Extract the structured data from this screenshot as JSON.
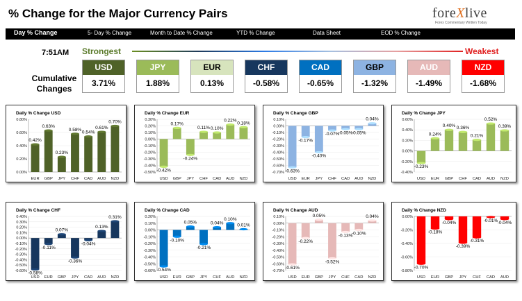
{
  "header": {
    "title": "% Change for the Major Currency Pairs",
    "logo_text_a": "fore",
    "logo_text_x": "X",
    "logo_text_b": "live",
    "logo_tagline": "Forex Commentary Written Today"
  },
  "nav": {
    "items": [
      {
        "label": "Day % Change",
        "active": true
      },
      {
        "label": "5- Day % Change",
        "active": false
      },
      {
        "label": "Month to Date % Change",
        "active": false
      },
      {
        "label": "YTD % Change",
        "active": false
      },
      {
        "label": "Data Sheet",
        "active": false
      },
      {
        "label": "EOD % Change",
        "active": false
      }
    ]
  },
  "summary": {
    "time": "7:51AM",
    "strongest": "Strongest",
    "weakest": "Weakest",
    "cumulative_label_1": "Cumulative",
    "cumulative_label_2": "Changes",
    "currencies": [
      {
        "name": "USD",
        "value": "3.71%",
        "color": "#4f6228",
        "text_color": "#ffffff"
      },
      {
        "name": "JPY",
        "value": "1.88%",
        "color": "#9bbb59",
        "text_color": "#ffffff"
      },
      {
        "name": "EUR",
        "value": "0.13%",
        "color": "#d7e4bd",
        "text_color": "#000000"
      },
      {
        "name": "CHF",
        "value": "-0.58%",
        "color": "#17375e",
        "text_color": "#ffffff"
      },
      {
        "name": "CAD",
        "value": "-0.65%",
        "color": "#0070c0",
        "text_color": "#ffffff"
      },
      {
        "name": "GBP",
        "value": "-1.32%",
        "color": "#8db3e2",
        "text_color": "#000000"
      },
      {
        "name": "AUD",
        "value": "-1.49%",
        "color": "#e6b9b8",
        "text_color": "#ffffff"
      },
      {
        "name": "NZD",
        "value": "-1.68%",
        "color": "#ff0000",
        "text_color": "#ffffff"
      }
    ]
  },
  "chart_data": [
    {
      "type": "bar",
      "title": "Daily % Change USD",
      "color": "#4f6228",
      "categories": [
        "EUR",
        "GBP",
        "JPY",
        "CHF",
        "CAD",
        "AUD",
        "NZD"
      ],
      "values": [
        0.42,
        0.63,
        0.23,
        0.58,
        0.54,
        0.61,
        0.7
      ],
      "labels": [
        "0.42%",
        "0.63%",
        "0.23%",
        "0.58%",
        "0.54%",
        "0.61%",
        "0.70%"
      ],
      "ylim": [
        0.0,
        0.8
      ],
      "ticks": [
        0.0,
        0.2,
        0.4,
        0.6,
        0.8
      ],
      "tick_labels": [
        "0.00%",
        "0.20%",
        "0.40%",
        "0.60%",
        "0.80%"
      ]
    },
    {
      "type": "bar",
      "title": "Daily % Change EUR",
      "color": "#9bbb59",
      "categories": [
        "USD",
        "GBP",
        "JPY",
        "CHF",
        "CAD",
        "AUD",
        "NZD"
      ],
      "values": [
        -0.42,
        0.17,
        -0.24,
        0.11,
        0.1,
        0.22,
        0.18
      ],
      "labels": [
        "-0.42%",
        "0.17%",
        "-0.24%",
        "0.11%",
        "0.10%",
        "0.22%",
        "0.18%"
      ],
      "ylim": [
        -0.5,
        0.3
      ],
      "ticks": [
        -0.5,
        -0.4,
        -0.3,
        -0.2,
        -0.1,
        0.0,
        0.1,
        0.2,
        0.3
      ],
      "tick_labels": [
        "-0.50%",
        "-0.40%",
        "-0.30%",
        "-0.20%",
        "-0.10%",
        "0.00%",
        "0.10%",
        "0.20%",
        "0.30%"
      ]
    },
    {
      "type": "bar",
      "title": "Daily % Change GBP",
      "color": "#8db3e2",
      "categories": [
        "USD",
        "EUR",
        "JPY",
        "CHF",
        "CAD",
        "AUD",
        "NZD"
      ],
      "values": [
        -0.63,
        -0.17,
        -0.4,
        -0.07,
        -0.05,
        -0.05,
        0.04
      ],
      "labels": [
        "-0.63%",
        "-0.17%",
        "-0.40%",
        "-0.07%",
        "-0.05%",
        "-0.05%",
        "0.04%"
      ],
      "ylim": [
        -0.7,
        0.1
      ],
      "ticks": [
        -0.7,
        -0.6,
        -0.5,
        -0.4,
        -0.3,
        -0.2,
        -0.1,
        0.0,
        0.1
      ],
      "tick_labels": [
        "-0.70%",
        "-0.60%",
        "-0.50%",
        "-0.40%",
        "-0.30%",
        "-0.20%",
        "-0.10%",
        "0.00%",
        "0.10%"
      ]
    },
    {
      "type": "bar",
      "title": "Daily % Change JPY",
      "color": "#9bbb59",
      "categories": [
        "USD",
        "EUR",
        "GBP",
        "CHF",
        "CAD",
        "AUD",
        "NZD"
      ],
      "values": [
        -0.23,
        0.24,
        0.4,
        0.36,
        0.21,
        0.52,
        0.39
      ],
      "labels": [
        "-0.23%",
        "0.24%",
        "0.40%",
        "0.36%",
        "0.21%",
        "0.52%",
        "0.39%"
      ],
      "ylim": [
        -0.4,
        0.6
      ],
      "ticks": [
        -0.4,
        -0.2,
        0.0,
        0.2,
        0.4,
        0.6
      ],
      "tick_labels": [
        "-0.40%",
        "-0.20%",
        "0.00%",
        "0.20%",
        "0.40%",
        "0.60%"
      ]
    },
    {
      "type": "bar",
      "title": "Daily % Change CHF",
      "color": "#17375e",
      "categories": [
        "USD",
        "EUR",
        "GBP",
        "JPY",
        "CAD",
        "AUD",
        "NZD"
      ],
      "values": [
        -0.58,
        -0.11,
        0.07,
        -0.36,
        -0.04,
        0.13,
        0.31
      ],
      "labels": [
        "-0.58%",
        "-0.11%",
        "0.07%",
        "-0.36%",
        "-0.04%",
        "0.13%",
        "0.31%"
      ],
      "ylim": [
        -0.6,
        0.4
      ],
      "ticks": [
        -0.6,
        -0.5,
        -0.4,
        -0.3,
        -0.2,
        -0.1,
        0.0,
        0.1,
        0.2,
        0.3,
        0.4
      ],
      "tick_labels": [
        "-0.60%",
        "-0.50%",
        "-0.40%",
        "-0.30%",
        "-0.20%",
        "-0.10%",
        "0.00%",
        "0.10%",
        "0.20%",
        "0.30%",
        "0.40%"
      ]
    },
    {
      "type": "bar",
      "title": "Daily % Change CAD",
      "color": "#0070c0",
      "categories": [
        "USD",
        "EUR",
        "GBP",
        "JPY",
        "CHF",
        "AUD",
        "NZD"
      ],
      "values": [
        -0.54,
        -0.1,
        0.05,
        -0.21,
        0.04,
        0.1,
        0.01
      ],
      "labels": [
        "-0.54%",
        "-0.10%",
        "0.05%",
        "-0.21%",
        "0.04%",
        "0.10%",
        "0.01%"
      ],
      "ylim": [
        -0.6,
        0.2
      ],
      "ticks": [
        -0.6,
        -0.5,
        -0.4,
        -0.3,
        -0.2,
        -0.1,
        0.0,
        0.1,
        0.2
      ],
      "tick_labels": [
        "-0.60%",
        "-0.50%",
        "-0.40%",
        "-0.30%",
        "-0.20%",
        "-0.10%",
        "0.00%",
        "0.10%",
        "0.20%"
      ]
    },
    {
      "type": "bar",
      "title": "Daily % Change AUD",
      "color": "#e6b9b8",
      "categories": [
        "USD",
        "EUR",
        "GBP",
        "JPY",
        "CHF",
        "CAD",
        "NZD"
      ],
      "values": [
        -0.61,
        -0.22,
        0.05,
        -0.52,
        -0.13,
        -0.1,
        0.04
      ],
      "labels": [
        "-0.61%",
        "-0.22%",
        "0.05%",
        "-0.52%",
        "-0.13%",
        "-0.10%",
        "0.04%"
      ],
      "ylim": [
        -0.7,
        0.1
      ],
      "ticks": [
        -0.7,
        -0.6,
        -0.5,
        -0.4,
        -0.3,
        -0.2,
        -0.1,
        0.0,
        0.1
      ],
      "tick_labels": [
        "-0.70%",
        "-0.60%",
        "-0.50%",
        "-0.40%",
        "-0.30%",
        "-0.20%",
        "-0.10%",
        "0.00%",
        "0.10%"
      ]
    },
    {
      "type": "bar",
      "title": "Daily % Change NZD",
      "color": "#ff0000",
      "categories": [
        "USD",
        "EUR",
        "GBP",
        "JPY",
        "CHF",
        "CAD",
        "AUD"
      ],
      "values": [
        -0.7,
        -0.18,
        -0.04,
        -0.39,
        -0.31,
        -0.01,
        -0.04
      ],
      "labels": [
        "-0.70%",
        "-0.18%",
        "-0.04%",
        "-0.39%",
        "-0.31%",
        "-0.01%",
        "-0.04%"
      ],
      "ylim": [
        -0.8,
        0.0
      ],
      "ticks": [
        -0.8,
        -0.6,
        -0.4,
        -0.2,
        0.0
      ],
      "tick_labels": [
        "-0.80%",
        "-0.60%",
        "-0.40%",
        "-0.20%",
        "0.00%"
      ]
    }
  ]
}
